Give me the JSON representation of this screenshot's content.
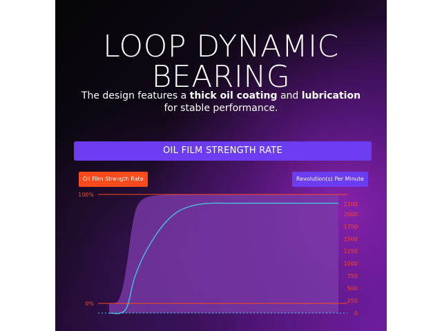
{
  "header": {
    "title_line1": "LOOP DYNAMIC",
    "title_line2": "BEARING",
    "subtitle_prefix": "The design features a ",
    "subtitle_bold1": "thick oil coating",
    "subtitle_middle": " and ",
    "subtitle_bold2": "lubrication",
    "subtitle_suffix": "for stable performance."
  },
  "banner": {
    "label": "OIL FILM STRENGTH RATE"
  },
  "colors": {
    "accent_purple": "#6b3cf0",
    "accent_orange": "#ff4a1c",
    "curve_cyan": "#3fd0e6",
    "area_fill": "#7a3aa8"
  },
  "chart_data": {
    "type": "area",
    "title": "OIL FILM STRENGTH RATE",
    "series": [
      {
        "name": "Oil Film Strength Rate",
        "axis": "left",
        "kind": "area",
        "x": [
          0,
          2,
          4,
          6,
          8,
          10,
          12,
          15,
          20,
          30,
          40,
          60,
          80,
          100
        ],
        "y": [
          0,
          0,
          3,
          15,
          40,
          70,
          88,
          96,
          99,
          100,
          100,
          100,
          100,
          100
        ]
      },
      {
        "name": "Revolution(s) Per Minute",
        "axis": "right",
        "kind": "line",
        "x": [
          0,
          5,
          8,
          11,
          15,
          20,
          25,
          30,
          35,
          40,
          45,
          50,
          55,
          60,
          100
        ],
        "y": [
          0,
          0,
          150,
          700,
          1150,
          1550,
          1850,
          2050,
          2150,
          2200,
          2220,
          2220,
          2220,
          2220,
          2220
        ]
      }
    ],
    "left_axis": {
      "ticks": [
        "100%",
        "0%"
      ],
      "ylim": [
        0,
        100
      ]
    },
    "right_axis": {
      "ticks": [
        "2200",
        "2000",
        "1750",
        "1500",
        "1250",
        "1000",
        "750",
        "500",
        "250",
        "0"
      ],
      "ylim": [
        0,
        2200
      ]
    },
    "xlim": [
      0,
      100
    ],
    "legend": [
      "Oil Film Strength Rate",
      "Revolution(s) Per Minute"
    ]
  }
}
